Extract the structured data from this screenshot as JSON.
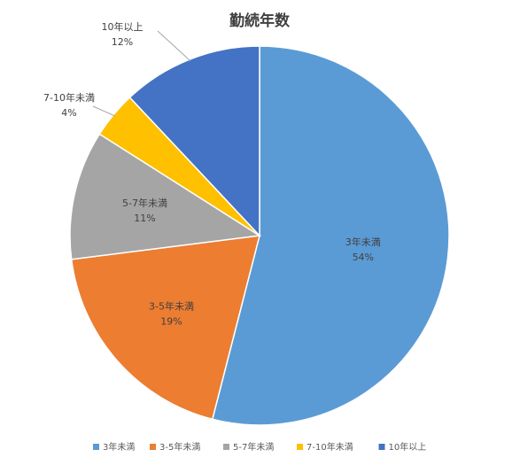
{
  "chart_data": {
    "type": "pie",
    "title": "勤続年数",
    "categories": [
      "3年未満",
      "3-5年未満",
      "5-7年未満",
      "7-10年未満",
      "10年以上"
    ],
    "values": [
      54,
      19,
      11,
      4,
      12
    ],
    "data_labels": [
      "54%",
      "19%",
      "11%",
      "4%",
      "12%"
    ],
    "colors": [
      "#5b9bd5",
      "#ed7d31",
      "#a5a5a5",
      "#ffc000",
      "#4472c4"
    ],
    "legend_position": "bottom",
    "start": "12 o'clock, clockwise"
  }
}
